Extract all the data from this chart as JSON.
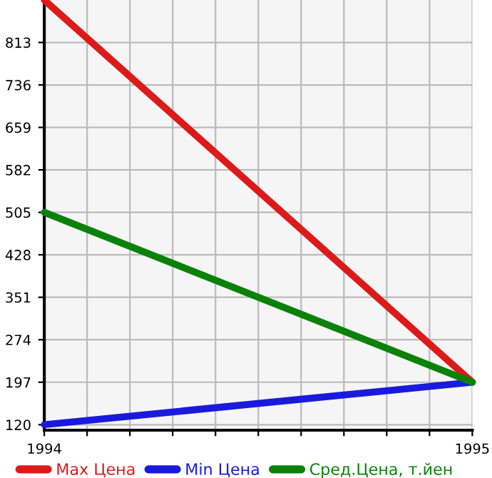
{
  "chart_data": {
    "type": "line",
    "x": [
      1994,
      1995
    ],
    "series": [
      {
        "name": "Max Цена",
        "color": "#dd1a1a",
        "values": [
          890,
          197
        ]
      },
      {
        "name": "Min Цена",
        "color": "#1a1add",
        "values": [
          120,
          197
        ]
      },
      {
        "name": "Сред.Цена, т.йен",
        "color": "#0a820a",
        "values": [
          505,
          197
        ]
      }
    ],
    "xlim": [
      1994,
      1995
    ],
    "ylim": [
      110,
      890
    ],
    "xticks": [
      1994,
      {
        "value": 1994.1,
        "label": null
      },
      {
        "value": 1994.2,
        "label": null
      },
      {
        "value": 1994.3,
        "label": null
      },
      {
        "value": 1994.4,
        "label": null
      },
      {
        "value": 1994.5,
        "label": null
      },
      {
        "value": 1994.6,
        "label": null
      },
      {
        "value": 1994.7,
        "label": null
      },
      {
        "value": 1994.8,
        "label": null
      },
      {
        "value": 1994.9,
        "label": null
      },
      1995
    ],
    "yticks": [
      120,
      197,
      274,
      351,
      428,
      505,
      582,
      659,
      736,
      813
    ],
    "grid": true,
    "legend": "bottom",
    "marker": "none",
    "line_style": "solid"
  }
}
